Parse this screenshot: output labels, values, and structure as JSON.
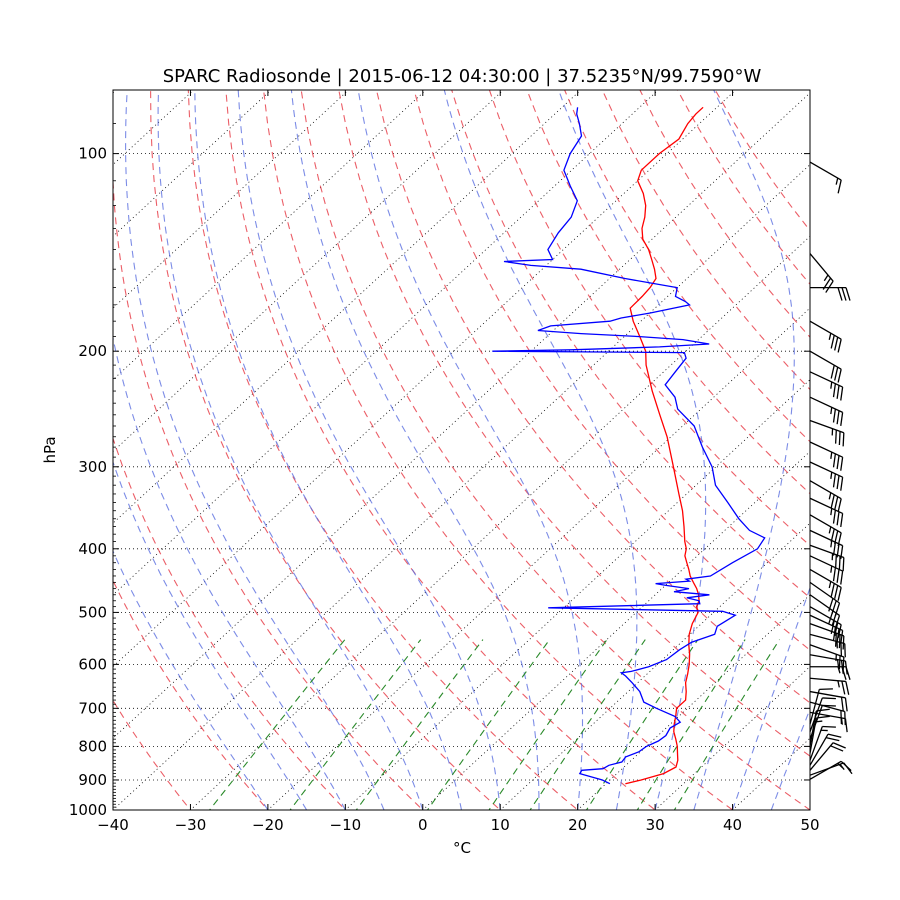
{
  "chart_data": {
    "type": "skew-t",
    "title": "SPARC Radiosonde | 2015-06-12 04:30:00 | 37.5235°N/99.7590°W",
    "xlabel": "°C",
    "ylabel": "hPa",
    "xlim": [
      -40,
      50
    ],
    "ylim": [
      1000,
      80
    ],
    "y_scale": "log",
    "x_ticks": [
      "−40",
      "−30",
      "−20",
      "−10",
      "0",
      "10",
      "20",
      "30",
      "40",
      "50"
    ],
    "y_ticks": [
      "100",
      "200",
      "300",
      "400",
      "500",
      "600",
      "700",
      "800",
      "900",
      "1000"
    ],
    "grid": true,
    "isobar_style": "dotted",
    "isotherm_style": "dotted",
    "dry_adiabats_color": "#e8424c",
    "moist_adiabats_color": "#5b6fe0",
    "mixing_ratio_color": "#2a8a2a",
    "temperature_color": "#ff0000",
    "dewpoint_color": "#0000ff",
    "series": [
      {
        "name": "Temperature",
        "points": [
          [
            912,
            22.5
          ],
          [
            900,
            24.0
          ],
          [
            880,
            26.0
          ],
          [
            860,
            26.7
          ],
          [
            840,
            26.0
          ],
          [
            820,
            25.0
          ],
          [
            800,
            24.0
          ],
          [
            780,
            22.8
          ],
          [
            760,
            21.5
          ],
          [
            740,
            20.5
          ],
          [
            720,
            19.6
          ],
          [
            700,
            18.6
          ],
          [
            680,
            18.6
          ],
          [
            660,
            17.5
          ],
          [
            640,
            16.2
          ],
          [
            620,
            15.2
          ],
          [
            600,
            14.1
          ],
          [
            580,
            12.8
          ],
          [
            560,
            11.3
          ],
          [
            540,
            9.9
          ],
          [
            520,
            8.8
          ],
          [
            500,
            8.0
          ],
          [
            490,
            7.0
          ],
          [
            480,
            6.5
          ],
          [
            470,
            5.6
          ],
          [
            460,
            4.5
          ],
          [
            450,
            3.2
          ],
          [
            440,
            1.9
          ],
          [
            430,
            0.8
          ],
          [
            420,
            -0.4
          ],
          [
            410,
            -1.6
          ],
          [
            400,
            -2.4
          ],
          [
            390,
            -3.6
          ],
          [
            370,
            -5.8
          ],
          [
            350,
            -8.2
          ],
          [
            330,
            -11.0
          ],
          [
            300,
            -15.5
          ],
          [
            270,
            -20.5
          ],
          [
            250,
            -24.5
          ],
          [
            230,
            -28.8
          ],
          [
            210,
            -33.2
          ],
          [
            200,
            -35.2
          ],
          [
            190,
            -38.0
          ],
          [
            180,
            -41.0
          ],
          [
            172,
            -43.2
          ],
          [
            165,
            -43.3
          ],
          [
            160,
            -43.5
          ],
          [
            155,
            -44.0
          ],
          [
            150,
            -45.5
          ],
          [
            145,
            -47.2
          ],
          [
            140,
            -49.0
          ],
          [
            135,
            -51.2
          ],
          [
            130,
            -52.8
          ],
          [
            125,
            -54.0
          ],
          [
            120,
            -55.5
          ],
          [
            115,
            -57.5
          ],
          [
            110,
            -60.0
          ],
          [
            106,
            -61.0
          ],
          [
            100,
            -61.0
          ],
          [
            95,
            -60.5
          ],
          [
            90,
            -61.5
          ],
          [
            87,
            -61.8
          ],
          [
            85,
            -61.8
          ]
        ]
      },
      {
        "name": "Dewpoint",
        "points": [
          [
            912,
            20.5
          ],
          [
            900,
            19.0
          ],
          [
            880,
            15.2
          ],
          [
            870,
            15.0
          ],
          [
            865,
            17.5
          ],
          [
            855,
            17.8
          ],
          [
            845,
            19.0
          ],
          [
            830,
            18.8
          ],
          [
            815,
            19.8
          ],
          [
            800,
            20.0
          ],
          [
            785,
            20.8
          ],
          [
            770,
            21.0
          ],
          [
            750,
            20.5
          ],
          [
            735,
            21.0
          ],
          [
            720,
            19.5
          ],
          [
            700,
            16.0
          ],
          [
            685,
            13.5
          ],
          [
            660,
            11.5
          ],
          [
            640,
            9.3
          ],
          [
            625,
            7.5
          ],
          [
            618,
            6.5
          ],
          [
            615,
            7.6
          ],
          [
            605,
            9.2
          ],
          [
            590,
            10.5
          ],
          [
            570,
            10.8
          ],
          [
            555,
            11.3
          ],
          [
            540,
            13.2
          ],
          [
            525,
            12.4
          ],
          [
            505,
            13.2
          ],
          [
            498,
            11.0
          ],
          [
            492,
            -12.0
          ],
          [
            485,
            7.0
          ],
          [
            480,
            6.5
          ],
          [
            475,
            4.5
          ],
          [
            470,
            7.0
          ],
          [
            465,
            2.0
          ],
          [
            460,
            3.5
          ],
          [
            455,
            0.2
          ],
          [
            452,
            -1.5
          ],
          [
            448,
            2.5
          ],
          [
            445,
            1.8
          ],
          [
            440,
            4.5
          ],
          [
            420,
            5.5
          ],
          [
            400,
            6.8
          ],
          [
            385,
            6.2
          ],
          [
            375,
            3.2
          ],
          [
            360,
            0.2
          ],
          [
            340,
            -3.5
          ],
          [
            320,
            -7.5
          ],
          [
            300,
            -10.5
          ],
          [
            280,
            -14.5
          ],
          [
            260,
            -18.5
          ],
          [
            245,
            -23.0
          ],
          [
            235,
            -25.0
          ],
          [
            225,
            -28.0
          ],
          [
            215,
            -28.5
          ],
          [
            205,
            -29.0
          ],
          [
            201,
            -30.0
          ],
          [
            200,
            -55.0
          ],
          [
            199,
            -45.0
          ],
          [
            197,
            -34.0
          ],
          [
            195,
            -28.0
          ],
          [
            192,
            -32.0
          ],
          [
            190,
            -38.0
          ],
          [
            188,
            -46.0
          ],
          [
            186,
            -52.0
          ],
          [
            183,
            -51.0
          ],
          [
            180,
            -44.0
          ],
          [
            178,
            -43.0
          ],
          [
            175,
            -40.0
          ],
          [
            170,
            -36.0
          ],
          [
            168,
            -37.0
          ],
          [
            165,
            -39.0
          ],
          [
            160,
            -40.0
          ],
          [
            155,
            -48.0
          ],
          [
            150,
            -55.0
          ],
          [
            148,
            -62.0
          ],
          [
            146,
            -66.0
          ],
          [
            145,
            -60.0
          ],
          [
            140,
            -62.0
          ],
          [
            132,
            -63.0
          ],
          [
            125,
            -63.5
          ],
          [
            118,
            -65.0
          ],
          [
            112,
            -68.0
          ],
          [
            106,
            -71.0
          ],
          [
            100,
            -72.5
          ],
          [
            94,
            -73.5
          ],
          [
            90,
            -75.5
          ],
          [
            87,
            -77.2
          ],
          [
            85,
            -78.0
          ]
        ]
      }
    ],
    "wind_barbs": [
      {
        "p": 898,
        "speed": 15,
        "dir": 240
      },
      {
        "p": 885,
        "speed": 15,
        "dir": 250
      },
      {
        "p": 870,
        "speed": 20,
        "dir": 220
      },
      {
        "p": 855,
        "speed": 20,
        "dir": 210
      },
      {
        "p": 840,
        "speed": 15,
        "dir": 200
      },
      {
        "p": 820,
        "speed": 15,
        "dir": 190
      },
      {
        "p": 800,
        "speed": 10,
        "dir": 190
      },
      {
        "p": 780,
        "speed": 10,
        "dir": 200
      },
      {
        "p": 760,
        "speed": 10,
        "dir": 200
      },
      {
        "p": 740,
        "speed": 10,
        "dir": 195
      },
      {
        "p": 710,
        "speed": 15,
        "dir": 280
      },
      {
        "p": 685,
        "speed": 20,
        "dir": 285
      },
      {
        "p": 660,
        "speed": 20,
        "dir": 280
      },
      {
        "p": 630,
        "speed": 25,
        "dir": 275
      },
      {
        "p": 605,
        "speed": 25,
        "dir": 270
      },
      {
        "p": 580,
        "speed": 25,
        "dir": 280
      },
      {
        "p": 560,
        "speed": 25,
        "dir": 290
      },
      {
        "p": 540,
        "speed": 25,
        "dir": 285
      },
      {
        "p": 520,
        "speed": 30,
        "dir": 290
      },
      {
        "p": 505,
        "speed": 30,
        "dir": 295
      },
      {
        "p": 490,
        "speed": 30,
        "dir": 300
      },
      {
        "p": 470,
        "speed": 30,
        "dir": 305
      },
      {
        "p": 450,
        "speed": 30,
        "dir": 305
      },
      {
        "p": 430,
        "speed": 35,
        "dir": 300
      },
      {
        "p": 410,
        "speed": 35,
        "dir": 295
      },
      {
        "p": 395,
        "speed": 35,
        "dir": 290
      },
      {
        "p": 375,
        "speed": 35,
        "dir": 295
      },
      {
        "p": 355,
        "speed": 35,
        "dir": 300
      },
      {
        "p": 335,
        "speed": 35,
        "dir": 295
      },
      {
        "p": 315,
        "speed": 35,
        "dir": 300
      },
      {
        "p": 295,
        "speed": 35,
        "dir": 295
      },
      {
        "p": 275,
        "speed": 35,
        "dir": 295
      },
      {
        "p": 255,
        "speed": 35,
        "dir": 290
      },
      {
        "p": 235,
        "speed": 35,
        "dir": 295
      },
      {
        "p": 215,
        "speed": 35,
        "dir": 295
      },
      {
        "p": 200,
        "speed": 30,
        "dir": 300
      },
      {
        "p": 180,
        "speed": 35,
        "dir": 300
      },
      {
        "p": 160,
        "speed": 30,
        "dir": 270
      },
      {
        "p": 142,
        "speed": 25,
        "dir": 320
      },
      {
        "p": 103,
        "speed": 15,
        "dir": 300
      }
    ]
  }
}
